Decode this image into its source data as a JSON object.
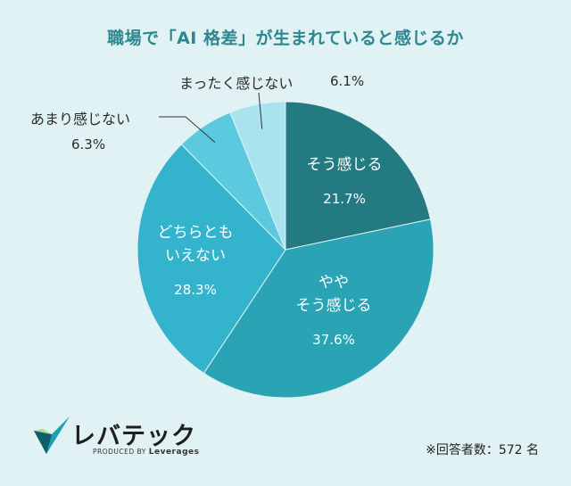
{
  "title": "職場で「AI 格差」が生まれていると感じるか",
  "chart_data": {
    "type": "pie",
    "title": "職場で「AI 格差」が生まれていると感じるか",
    "slices": [
      {
        "label": "そう感じる",
        "label_lines": [
          "そう感じる"
        ],
        "value": 21.7,
        "value_label": "21.7%",
        "color": "#237a80"
      },
      {
        "label": "ややそう感じる",
        "label_lines": [
          "やや",
          "そう感じる"
        ],
        "value": 37.6,
        "value_label": "37.6%",
        "color": "#2aa3b4"
      },
      {
        "label": "どちらともいえない",
        "label_lines": [
          "どちらとも",
          "いえない"
        ],
        "value": 28.3,
        "value_label": "28.3%",
        "color": "#34b3cd"
      },
      {
        "label": "あまり感じない",
        "label_lines": [
          "あまり感じない"
        ],
        "value": 6.3,
        "value_label": "6.3%",
        "color": "#5ccade"
      },
      {
        "label": "まったく感じない",
        "label_lines": [
          "まったく感じない"
        ],
        "value": 6.1,
        "value_label": "6.1%",
        "color": "#a8e3ee"
      }
    ]
  },
  "brand": {
    "name": "レバテック",
    "produced_by": "PRODUCED BY",
    "company": "Leverages"
  },
  "footnote": "※回答者数：572 名"
}
